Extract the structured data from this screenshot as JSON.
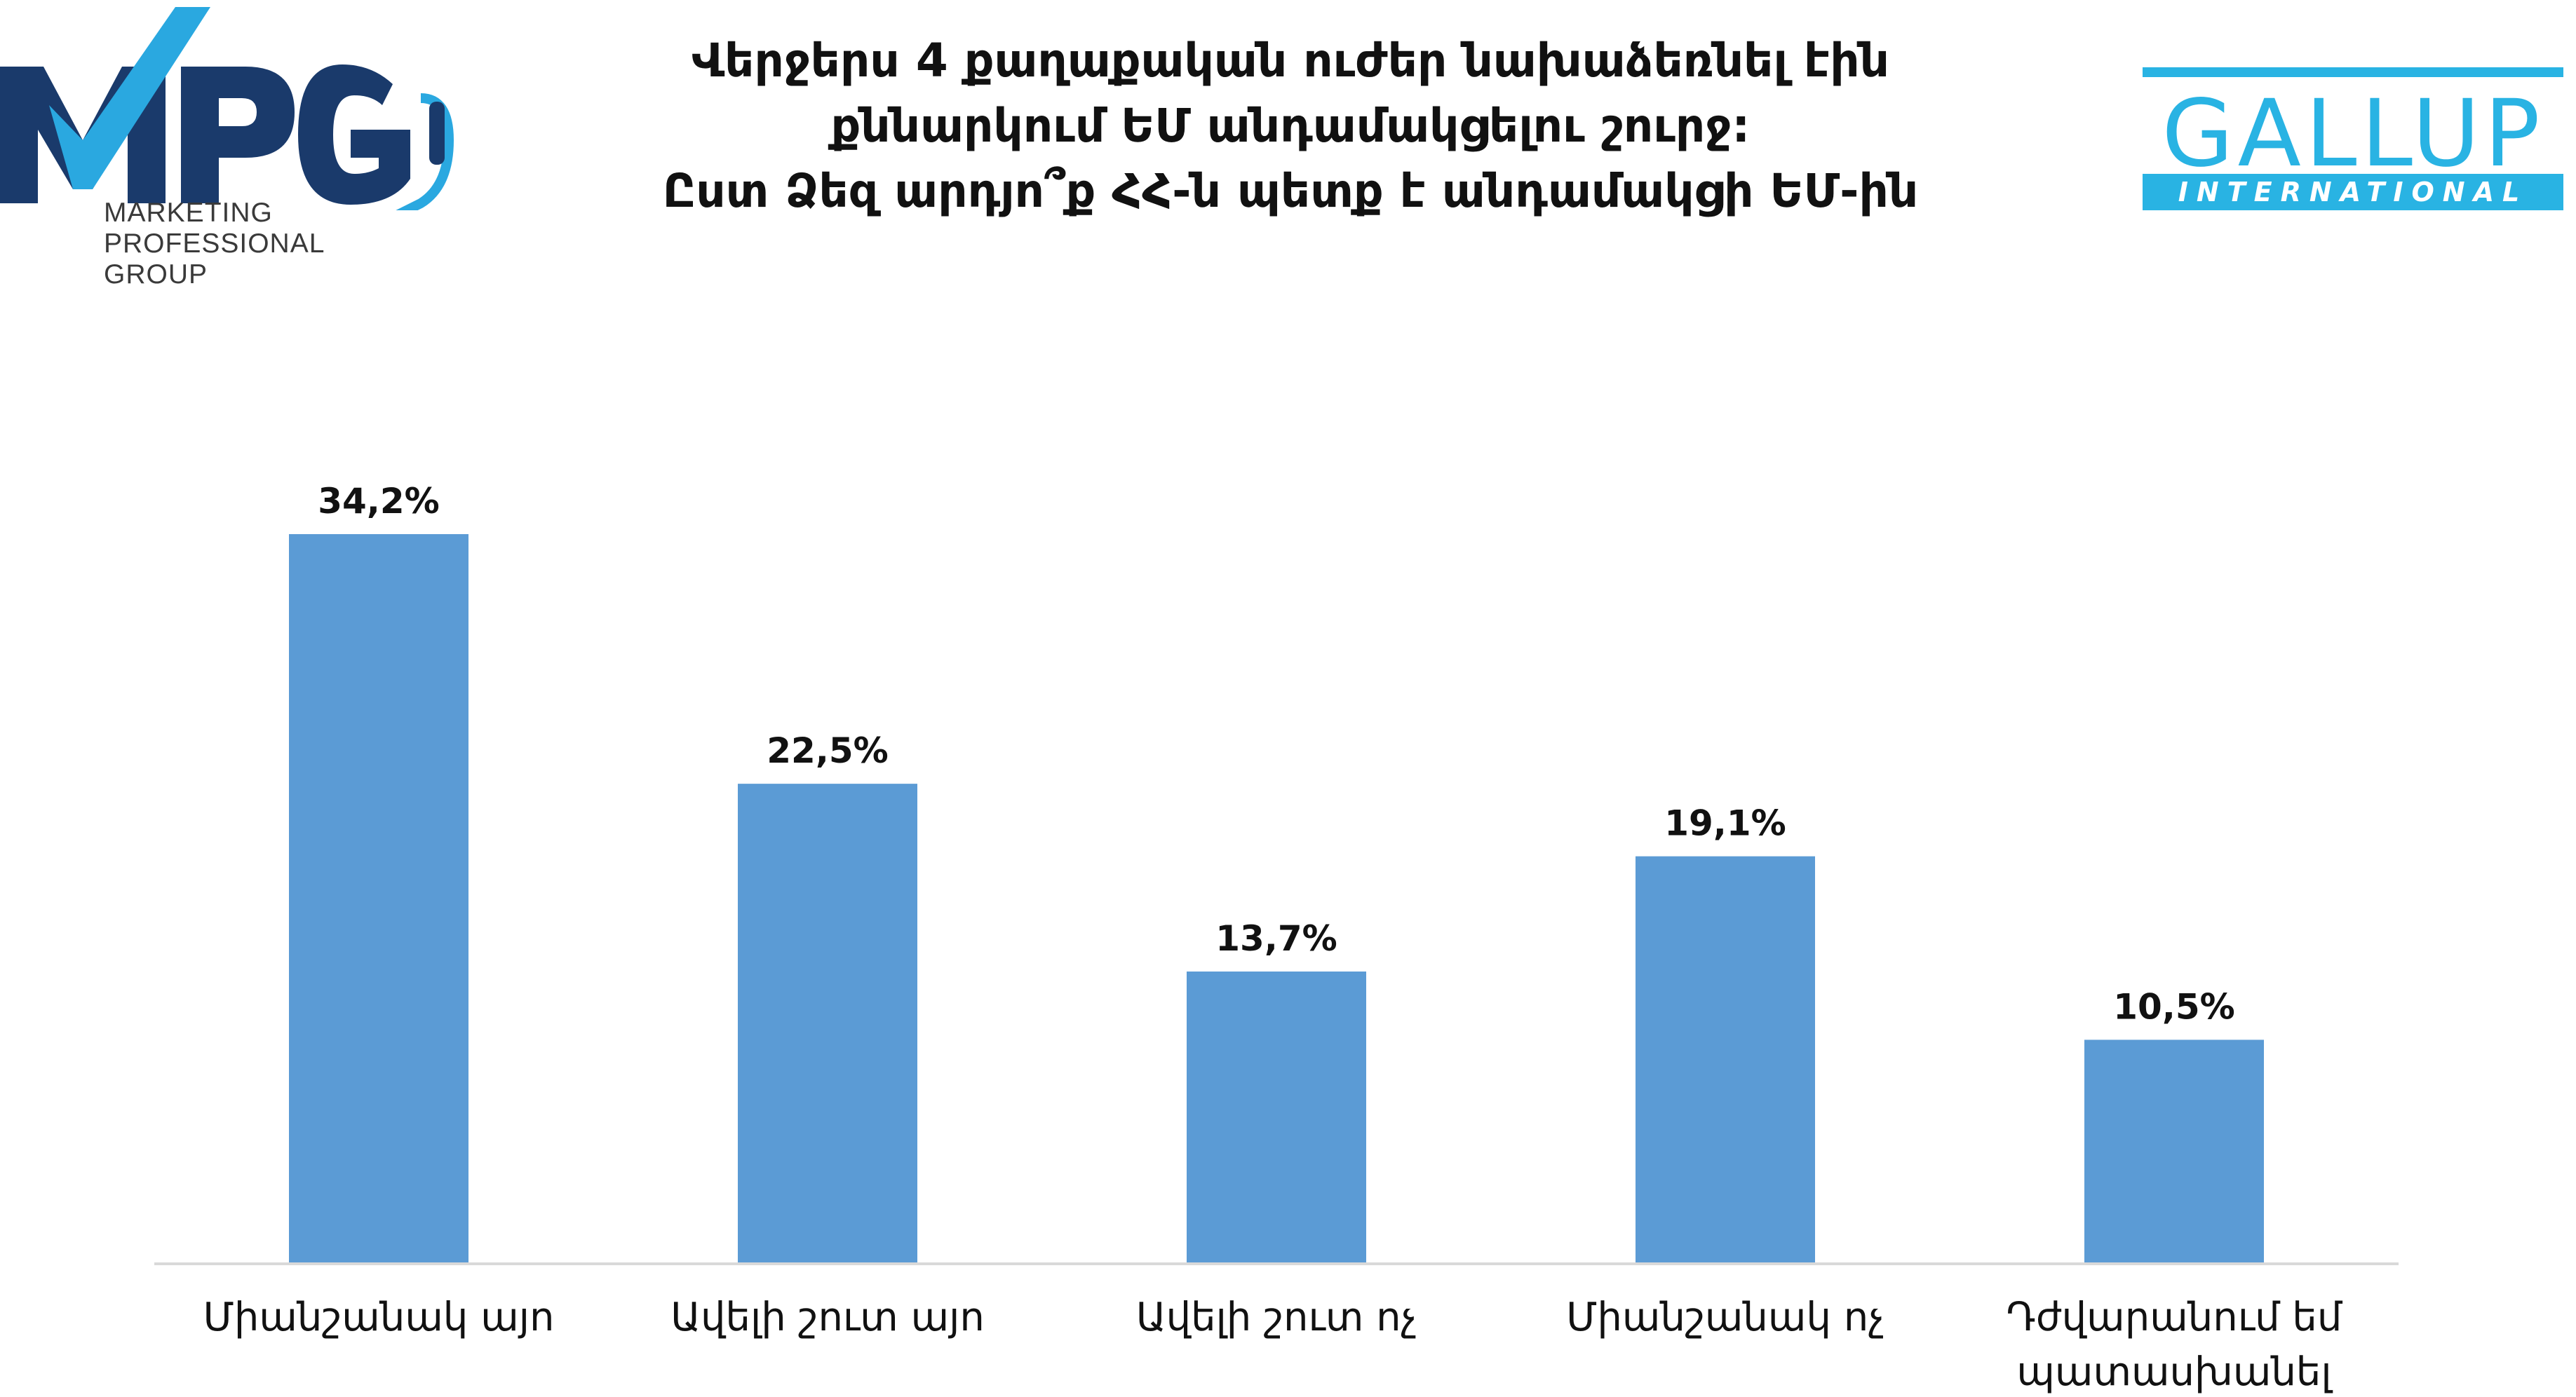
{
  "title": {
    "lines": [
      "Վերջերս 4 քաղաքական ուժեր նախաձեռնել էին",
      "քննարկում ԵՄ անդամակցելու շուրջ:",
      "Ըստ Ձեզ արդյո՞ք ՀՀ-ն պետք է անդամակցի ԵՄ-ին"
    ]
  },
  "logos": {
    "left": {
      "mark": "MPG",
      "subtitle_lines": [
        "MARKETING",
        "PROFESSIONAL",
        "GROUP"
      ],
      "colors": {
        "navy": "#1a3a6b",
        "blue": "#2aa8e0"
      }
    },
    "right": {
      "word": "GALLUP",
      "band": "INTERNATIONAL",
      "color": "#29b3e3"
    }
  },
  "chart_data": {
    "type": "bar",
    "title": "Վերջերս 4 քաղաքական ուժեր նախաձեռնել էին քննարկում ԵՄ անդամակցելու շուրջ: Ըստ Ձեզ արդյո՞ք ՀՀ-ն պետք է անդամակցի ԵՄ-ին",
    "categories": [
      "Միանշանակ այո",
      "Ավելի շուտ այո",
      "Ավելի շուտ ոչ",
      "Միանշանակ ոչ",
      "Դժվարանում եմ պատասխանել"
    ],
    "category_lines": [
      [
        "Միանշանակ այո"
      ],
      [
        "Ավելի շուտ այո"
      ],
      [
        "Ավելի շուտ ոչ"
      ],
      [
        "Միանշանակ ոչ"
      ],
      [
        "Դժվարանում եմ",
        "պատասխանել"
      ]
    ],
    "values": [
      34.2,
      22.5,
      13.7,
      19.1,
      10.5
    ],
    "value_labels": [
      "34,2%",
      "22,5%",
      "13,7%",
      "19,1%",
      "10,5%"
    ],
    "unit": "%",
    "xlabel": "",
    "ylabel": "",
    "ylim": [
      0,
      34.2
    ],
    "grid": false,
    "legend": "none",
    "bar_color": "#5b9bd5",
    "axis_color": "#d9d9d9"
  }
}
